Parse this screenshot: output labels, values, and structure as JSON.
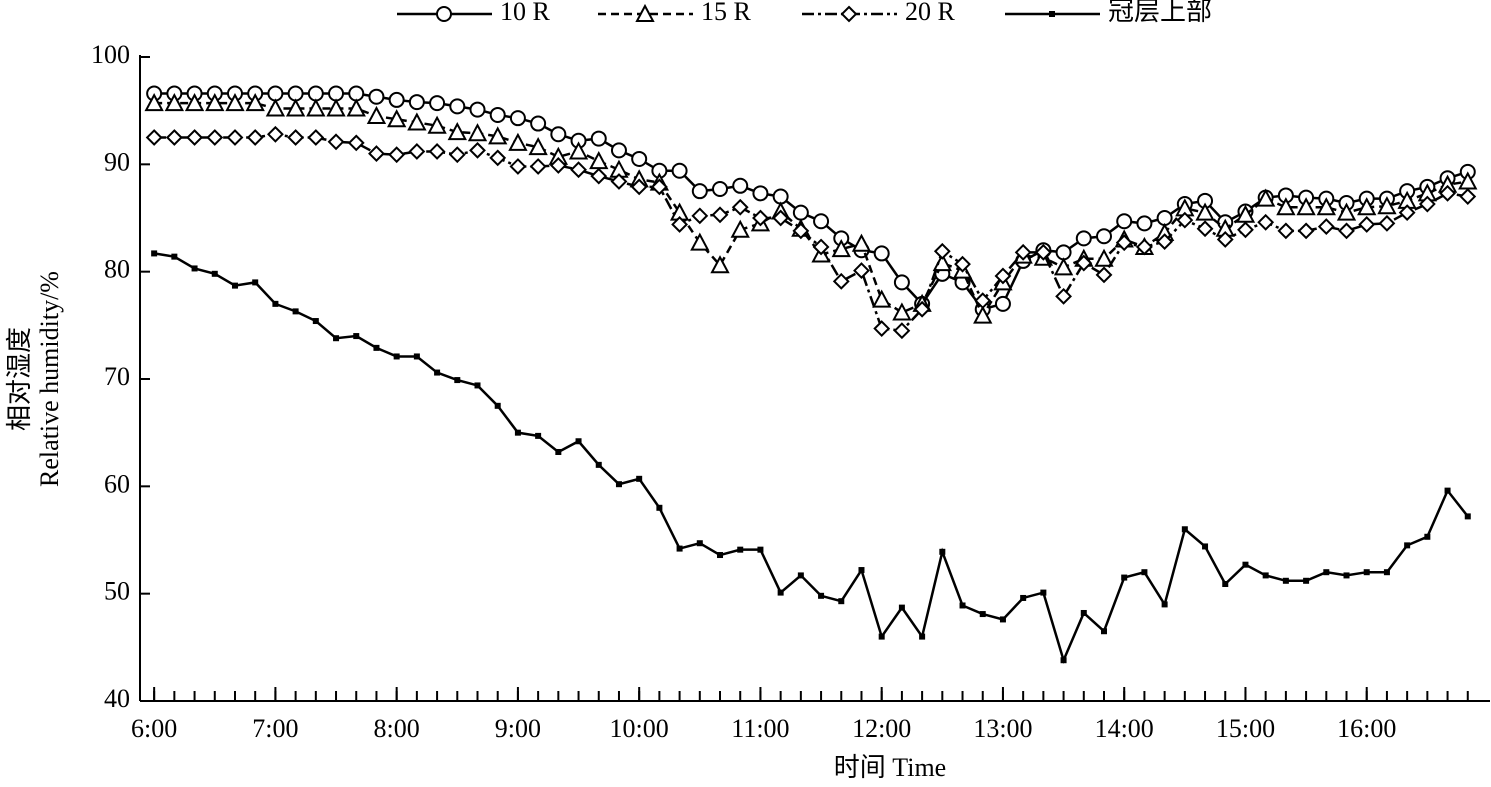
{
  "chart_data": {
    "type": "line",
    "xlabel": "时间 Time",
    "ylabel": [
      "相对湿度",
      "Relative humidity/%"
    ],
    "x": [
      360,
      370,
      380,
      390,
      400,
      410,
      420,
      430,
      440,
      450,
      460,
      470,
      480,
      490,
      500,
      510,
      520,
      530,
      540,
      550,
      560,
      570,
      580,
      590,
      600,
      610,
      620,
      630,
      640,
      650,
      660,
      670,
      680,
      690,
      700,
      710,
      720,
      730,
      740,
      750,
      760,
      770,
      780,
      790,
      800,
      810,
      820,
      830,
      840,
      850,
      860,
      870,
      880,
      890,
      900,
      910,
      920,
      930,
      940,
      950,
      960,
      970,
      980,
      990,
      1000,
      1010
    ],
    "xlim": [
      353,
      1021
    ],
    "xticks": [
      {
        "value": 360,
        "label": "6:00"
      },
      {
        "value": 420,
        "label": "7:00"
      },
      {
        "value": 480,
        "label": "8:00"
      },
      {
        "value": 540,
        "label": "9:00"
      },
      {
        "value": 600,
        "label": "10:00"
      },
      {
        "value": 660,
        "label": "11:00"
      },
      {
        "value": 720,
        "label": "12:00"
      },
      {
        "value": 780,
        "label": "13:00"
      },
      {
        "value": 840,
        "label": "14:00"
      },
      {
        "value": 900,
        "label": "15:00"
      },
      {
        "value": 960,
        "label": "16:00"
      }
    ],
    "ylim": [
      40,
      100
    ],
    "yticks": [
      40,
      50,
      60,
      70,
      80,
      90,
      100
    ],
    "legend": "top",
    "series": [
      {
        "name": "10 R",
        "color": "#000000",
        "marker": "circle",
        "line_style": "solid",
        "values": [
          96.6,
          96.6,
          96.6,
          96.6,
          96.6,
          96.6,
          96.6,
          96.6,
          96.6,
          96.6,
          96.6,
          96.3,
          96.0,
          95.8,
          95.7,
          95.4,
          95.1,
          94.6,
          94.3,
          93.8,
          92.8,
          92.2,
          92.4,
          91.3,
          90.5,
          89.4,
          89.4,
          87.5,
          87.7,
          88.0,
          87.3,
          87.0,
          85.5,
          84.7,
          83.1,
          82.0,
          81.7,
          79.0,
          77.0,
          79.8,
          79.0,
          76.5,
          77.0,
          81.0,
          82.0,
          81.8,
          83.1,
          83.3,
          84.7,
          84.5,
          85.0,
          86.3,
          86.6,
          84.6,
          85.6,
          86.9,
          87.1,
          86.9,
          86.8,
          86.4,
          86.8,
          86.8,
          87.5,
          87.9,
          88.7,
          89.3
        ]
      },
      {
        "name": "15 R",
        "color": "#000000",
        "marker": "triangle",
        "line_style": "dashed",
        "values": [
          95.7,
          95.7,
          95.7,
          95.7,
          95.7,
          95.7,
          95.2,
          95.2,
          95.2,
          95.2,
          95.2,
          94.5,
          94.2,
          93.9,
          93.6,
          93.0,
          92.9,
          92.6,
          92.0,
          91.6,
          90.7,
          91.2,
          90.3,
          89.5,
          88.6,
          88.3,
          85.5,
          82.7,
          80.6,
          83.9,
          84.5,
          85.6,
          84.0,
          81.6,
          82.1,
          82.6,
          77.4,
          76.2,
          77.0,
          80.8,
          80.1,
          75.9,
          79.0,
          81.5,
          81.3,
          80.4,
          81.2,
          81.2,
          83.0,
          82.3,
          83.6,
          85.9,
          85.5,
          84.0,
          85.3,
          86.8,
          86.0,
          86.0,
          86.0,
          85.5,
          86.0,
          86.1,
          86.6,
          87.3,
          88.1,
          88.4
        ]
      },
      {
        "name": "20 R",
        "color": "#000000",
        "marker": "diamond",
        "line_style": "dashdot",
        "values": [
          92.5,
          92.5,
          92.5,
          92.5,
          92.5,
          92.5,
          92.8,
          92.5,
          92.5,
          92.1,
          92.0,
          91.0,
          90.9,
          91.2,
          91.2,
          90.9,
          91.3,
          90.6,
          89.8,
          89.8,
          89.9,
          89.5,
          88.9,
          88.4,
          87.9,
          87.9,
          84.4,
          85.2,
          85.3,
          86.0,
          85.0,
          85.0,
          83.8,
          82.3,
          79.1,
          80.1,
          74.7,
          74.5,
          76.5,
          81.9,
          80.7,
          77.3,
          79.6,
          81.8,
          81.8,
          77.7,
          80.8,
          79.7,
          82.7,
          82.3,
          82.8,
          84.8,
          84.0,
          83.0,
          83.9,
          84.6,
          83.8,
          83.8,
          84.2,
          83.8,
          84.4,
          84.5,
          85.5,
          86.3,
          87.3,
          87.0
        ]
      },
      {
        "name": "冠层上部",
        "color": "#000000",
        "marker": "square",
        "line_style": "solid",
        "values": [
          81.7,
          81.4,
          80.3,
          79.8,
          78.7,
          79.0,
          77.0,
          76.3,
          75.4,
          73.8,
          74.0,
          72.9,
          72.1,
          72.1,
          70.6,
          69.9,
          69.4,
          67.5,
          65.0,
          64.7,
          63.2,
          64.2,
          62.0,
          60.2,
          60.7,
          58.0,
          54.2,
          54.7,
          53.6,
          54.1,
          54.1,
          50.1,
          51.7,
          49.8,
          49.3,
          52.2,
          46.0,
          48.7,
          46.0,
          53.9,
          48.9,
          48.1,
          47.6,
          49.6,
          50.1,
          43.8,
          48.2,
          46.5,
          51.5,
          52.0,
          49.0,
          56.0,
          54.4,
          50.9,
          52.7,
          51.7,
          51.2,
          51.2,
          52.0,
          51.7,
          52.0,
          52.0,
          54.5,
          55.3,
          59.6,
          57.2
        ]
      }
    ]
  }
}
